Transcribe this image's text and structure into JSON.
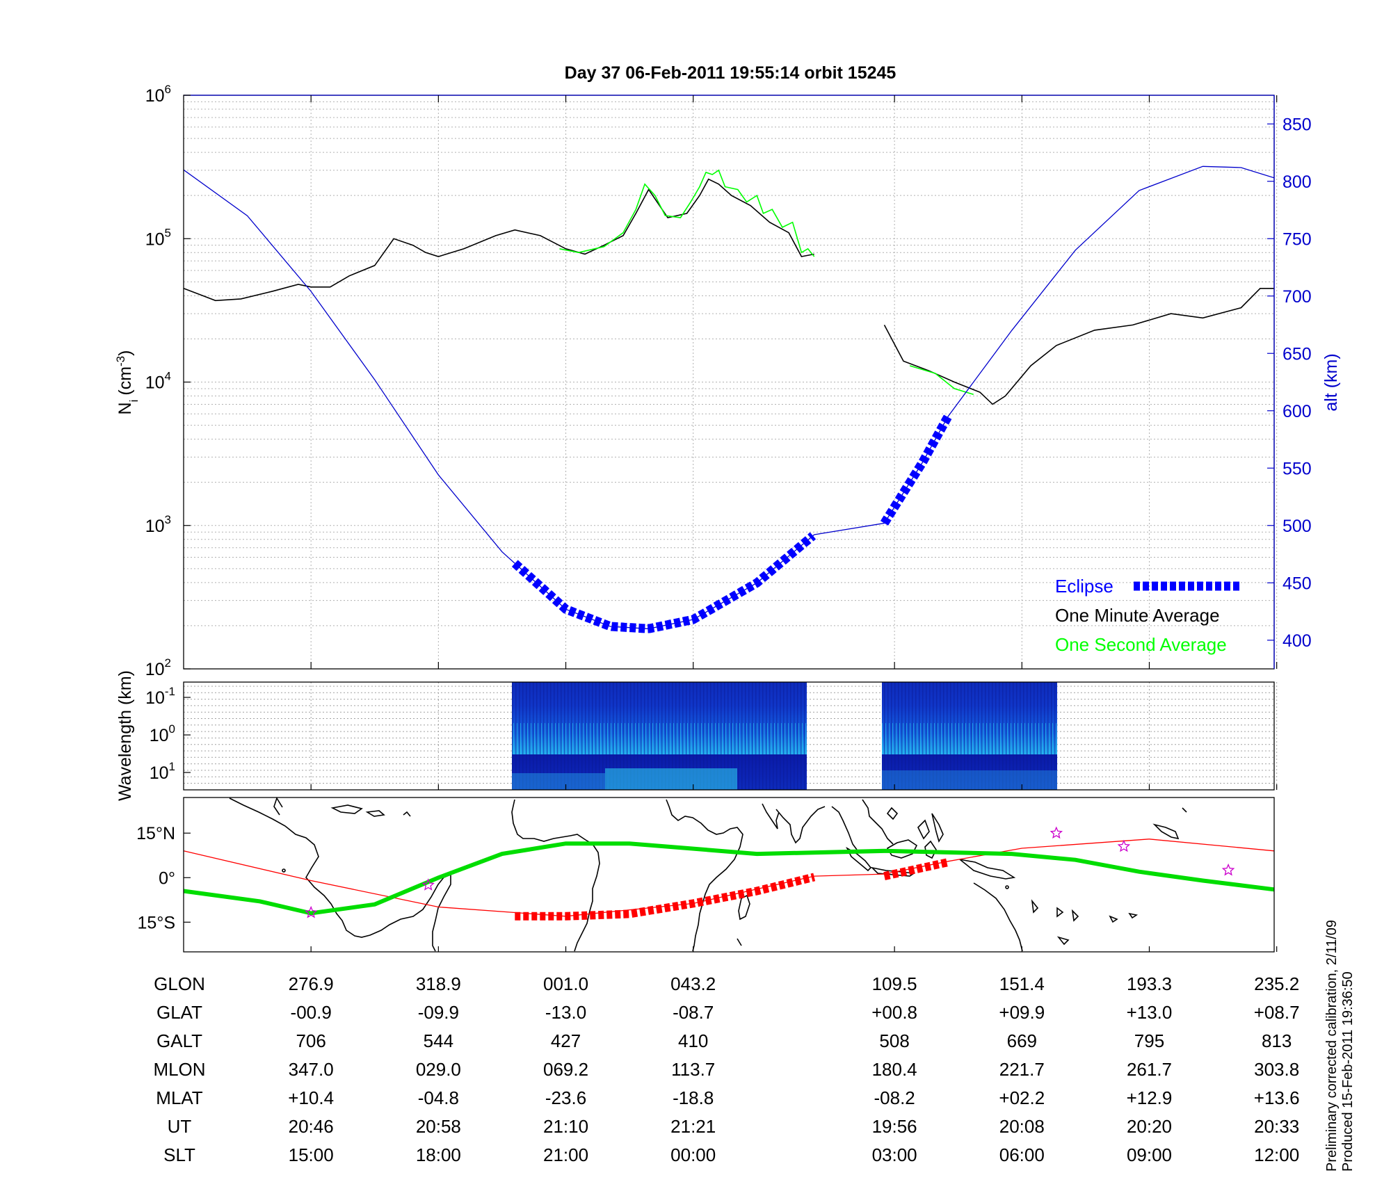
{
  "title": "Day 37  06-Feb-2011 19:55:14   orbit 15245",
  "ylabel_left": "N",
  "ylabel_left_sub": "i",
  "ylabel_left_unit": "(cm",
  "ylabel_left_unit_sup": "-3",
  "ylabel_left_unit_end": ")",
  "ylabel_right": "alt (km)",
  "spec_ylabel": "Wavelength (km)",
  "footnote_line1": "Preliminary corrected calibration, 2/11/09",
  "footnote_line2": "Produced 15-Feb-2011 19:36:50",
  "colors": {
    "density_1min": "#000000",
    "density_1s": "#00ff00",
    "altitude": "#0000cc",
    "eclipse": "#0000ff",
    "map_track": "#ff0000",
    "magnetic_equator": "#00dd00",
    "stars": "#cc00cc"
  },
  "legend": {
    "eclipse": "Eclipse",
    "one_minute": "One Minute Average",
    "one_second": "One Second Average"
  },
  "map_ticks": [
    "15°N",
    "0°",
    "15°S"
  ],
  "spec_ticks": [
    {
      "base": "10",
      "exp": "-1"
    },
    {
      "base": "10",
      "exp": "0"
    },
    {
      "base": "10",
      "exp": "1"
    }
  ],
  "chart_data": {
    "type": "line",
    "title": "Day 37  06-Feb-2011 19:55:14   orbit 15245",
    "xlabel": "",
    "ylabel": "Ni (cm-3)",
    "y_scale": "log",
    "ylim": [
      100,
      1000000
    ],
    "y_ticks": [
      {
        "base": "10",
        "exp": "2"
      },
      {
        "base": "10",
        "exp": "3"
      },
      {
        "base": "10",
        "exp": "4"
      },
      {
        "base": "10",
        "exp": "5"
      },
      {
        "base": "10",
        "exp": "6"
      }
    ],
    "y2label": "alt (km)",
    "y2lim": [
      375,
      875
    ],
    "y2_ticks": [
      "400",
      "450",
      "500",
      "550",
      "600",
      "650",
      "700",
      "750",
      "800",
      "850"
    ],
    "x_range_index": [
      0,
      8.56
    ],
    "x_ticks_index": [
      1,
      2,
      3,
      4,
      5.58,
      6.58,
      7.58,
      8.58
    ],
    "grid": true,
    "legend_position": "bottom-right",
    "series": [
      {
        "name": "One Minute Average",
        "segments": [
          [
            [
              0,
              45000
            ],
            [
              0.15,
              40000
            ],
            [
              0.25,
              37000
            ],
            [
              0.45,
              38000
            ],
            [
              0.7,
              43000
            ],
            [
              0.9,
              48000
            ],
            [
              1.0,
              46000
            ],
            [
              1.15,
              46000
            ],
            [
              1.3,
              55000
            ],
            [
              1.5,
              65000
            ],
            [
              1.65,
              100000
            ],
            [
              1.8,
              90000
            ],
            [
              1.9,
              80000
            ],
            [
              2.0,
              75000
            ],
            [
              2.2,
              85000
            ],
            [
              2.45,
              105000
            ],
            [
              2.6,
              115000
            ],
            [
              2.8,
              105000
            ],
            [
              3.0,
              85000
            ],
            [
              3.15,
              78000
            ],
            [
              3.3,
              90000
            ],
            [
              3.45,
              105000
            ],
            [
              3.55,
              150000
            ],
            [
              3.65,
              220000
            ],
            [
              3.8,
              140000
            ],
            [
              3.95,
              150000
            ],
            [
              4.05,
              200000
            ],
            [
              4.12,
              260000
            ],
            [
              4.2,
              240000
            ],
            [
              4.3,
              200000
            ],
            [
              4.45,
              170000
            ],
            [
              4.6,
              130000
            ],
            [
              4.75,
              110000
            ],
            [
              4.85,
              75000
            ],
            [
              4.95,
              78000
            ]
          ],
          [
            [
              5.5,
              25000
            ],
            [
              5.65,
              14000
            ],
            [
              5.85,
              12000
            ],
            [
              6.05,
              10000
            ],
            [
              6.25,
              8500
            ],
            [
              6.35,
              7000
            ],
            [
              6.45,
              8000
            ],
            [
              6.65,
              13000
            ],
            [
              6.85,
              18000
            ],
            [
              7.15,
              23000
            ],
            [
              7.45,
              25000
            ],
            [
              7.75,
              30000
            ],
            [
              8.0,
              28000
            ],
            [
              8.3,
              33000
            ],
            [
              8.45,
              45000
            ],
            [
              8.56,
              45000
            ]
          ]
        ]
      },
      {
        "name": "One Second Average",
        "segments": [
          [
            [
              2.95,
              85000
            ],
            [
              3.1,
              80000
            ],
            [
              3.3,
              88000
            ],
            [
              3.45,
              110000
            ],
            [
              3.55,
              160000
            ],
            [
              3.62,
              240000
            ],
            [
              3.7,
              200000
            ],
            [
              3.78,
              145000
            ],
            [
              3.9,
              140000
            ],
            [
              3.98,
              180000
            ],
            [
              4.05,
              230000
            ],
            [
              4.1,
              290000
            ],
            [
              4.15,
              280000
            ],
            [
              4.2,
              300000
            ],
            [
              4.25,
              230000
            ],
            [
              4.35,
              220000
            ],
            [
              4.42,
              180000
            ],
            [
              4.5,
              200000
            ],
            [
              4.55,
              150000
            ],
            [
              4.62,
              160000
            ],
            [
              4.7,
              120000
            ],
            [
              4.78,
              130000
            ],
            [
              4.85,
              80000
            ],
            [
              4.9,
              85000
            ],
            [
              4.95,
              75000
            ]
          ],
          [
            [
              5.7,
              13000
            ],
            [
              5.9,
              11500
            ],
            [
              6.05,
              9000
            ],
            [
              6.2,
              8200
            ]
          ]
        ]
      },
      {
        "name": "altitude",
        "axis": "right",
        "points": [
          [
            0,
            810
          ],
          [
            0.5,
            770
          ],
          [
            1.0,
            704
          ],
          [
            1.5,
            627
          ],
          [
            2.0,
            544
          ],
          [
            2.5,
            477
          ],
          [
            3.0,
            427
          ],
          [
            3.35,
            412
          ],
          [
            3.65,
            410
          ],
          [
            4.0,
            418
          ],
          [
            4.5,
            450
          ],
          [
            4.95,
            492
          ],
          [
            5.5,
            502
          ],
          [
            5.8,
            555
          ],
          [
            6.0,
            595
          ],
          [
            6.5,
            670
          ],
          [
            7.0,
            740
          ],
          [
            7.5,
            792
          ],
          [
            8.0,
            813
          ],
          [
            8.3,
            812
          ],
          [
            8.56,
            803
          ]
        ]
      },
      {
        "name": "Eclipse",
        "style": "thick-dashed",
        "segments": [
          [
            2.6,
            4.95
          ],
          [
            5.5,
            6.0
          ]
        ]
      }
    ],
    "table": {
      "row_labels": [
        "GLON",
        "GLAT",
        "GALT",
        "MLON",
        "MLAT",
        "UT",
        "SLT"
      ],
      "columns": [
        {
          "GLON": "276.9",
          "GLAT": "-00.9",
          "GALT": "706",
          "MLON": "347.0",
          "MLAT": "+10.4",
          "UT": "20:46",
          "SLT": "15:00"
        },
        {
          "GLON": "318.9",
          "GLAT": "-09.9",
          "GALT": "544",
          "MLON": "029.0",
          "MLAT": "-04.8",
          "UT": "20:58",
          "SLT": "18:00"
        },
        {
          "GLON": "001.0",
          "GLAT": "-13.0",
          "GALT": "427",
          "MLON": "069.2",
          "MLAT": "-23.6",
          "UT": "21:10",
          "SLT": "21:00"
        },
        {
          "GLON": "043.2",
          "GLAT": "-08.7",
          "GALT": "410",
          "MLON": "113.7",
          "MLAT": "-18.8",
          "UT": "21:21",
          "SLT": "00:00"
        },
        {
          "GLON": "109.5",
          "GLAT": "+00.8",
          "GALT": "508",
          "MLON": "180.4",
          "MLAT": "-08.2",
          "UT": "19:56",
          "SLT": "03:00"
        },
        {
          "GLON": "151.4",
          "GLAT": "+09.9",
          "GALT": "669",
          "MLON": "221.7",
          "MLAT": "+02.2",
          "UT": "20:08",
          "SLT": "06:00"
        },
        {
          "GLON": "193.3",
          "GLAT": "+13.0",
          "GALT": "795",
          "MLON": "261.7",
          "MLAT": "+12.9",
          "UT": "20:20",
          "SLT": "09:00"
        },
        {
          "GLON": "235.2",
          "GLAT": "+08.7",
          "GALT": "813",
          "MLON": "303.8",
          "MLAT": "+13.6",
          "UT": "20:33",
          "SLT": "12:00"
        }
      ]
    },
    "map": {
      "ylim": [
        -25,
        27
      ],
      "orbit_track": [
        [
          0,
          9
        ],
        [
          1.0,
          -1
        ],
        [
          2.0,
          -9.9
        ],
        [
          3.0,
          -13.0
        ],
        [
          4.0,
          -8.7
        ],
        [
          4.95,
          0.5
        ],
        [
          5.5,
          1.2
        ],
        [
          6.0,
          5.5
        ],
        [
          6.58,
          9.9
        ],
        [
          7.58,
          13.0
        ],
        [
          8.56,
          9.0
        ]
      ],
      "eclipse_track": [
        [
          2.6,
          -13
        ],
        [
          3.0,
          -13.0
        ],
        [
          3.5,
          -12.2
        ],
        [
          4.0,
          -8.7
        ],
        [
          4.5,
          -4.5
        ],
        [
          4.95,
          0.2
        ],
        [
          5.5,
          0.5
        ],
        [
          6.0,
          5.2
        ]
      ],
      "magnetic_equator": [
        [
          0,
          -4.5
        ],
        [
          0.6,
          -8
        ],
        [
          1.0,
          -12
        ],
        [
          1.5,
          -9
        ],
        [
          2.0,
          0
        ],
        [
          2.5,
          8
        ],
        [
          3.0,
          11.5
        ],
        [
          3.5,
          11.5
        ],
        [
          4.5,
          8
        ],
        [
          5.5,
          9
        ],
        [
          6.5,
          8
        ],
        [
          7.0,
          6
        ],
        [
          7.5,
          2
        ],
        [
          8.0,
          -1
        ],
        [
          8.56,
          -4
        ]
      ],
      "stars": [
        [
          1.0,
          -11.8
        ],
        [
          1.92,
          -2.5
        ],
        [
          6.85,
          15
        ],
        [
          7.38,
          10.5
        ],
        [
          8.2,
          2.5
        ]
      ]
    }
  }
}
